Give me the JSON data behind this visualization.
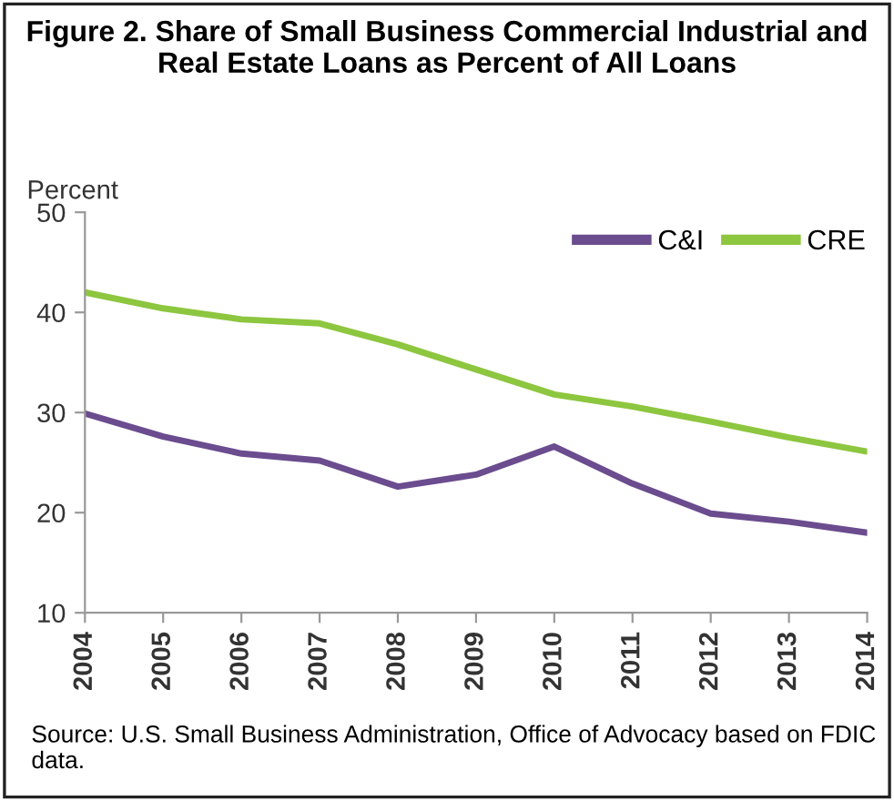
{
  "chart_data": {
    "type": "line",
    "title": "Figure 2. Share of Small Business Commercial Industrial and Real Estate Loans as Percent of All Loans",
    "ylabel": "Percent",
    "categories": [
      "2004",
      "2005",
      "2006",
      "2007",
      "2008",
      "2009",
      "2010",
      "2011",
      "2012",
      "2013",
      "2014"
    ],
    "series": [
      {
        "name": "C&I",
        "color": "#6b4c8f",
        "values": [
          29.9,
          27.6,
          25.9,
          25.2,
          22.6,
          23.8,
          26.6,
          22.9,
          19.9,
          19.1,
          18.0
        ]
      },
      {
        "name": "CRE",
        "color": "#8dc63f",
        "values": [
          42.0,
          40.4,
          39.3,
          38.9,
          36.8,
          34.3,
          31.8,
          30.6,
          29.1,
          27.5,
          26.1
        ]
      }
    ],
    "ylim": [
      10,
      50
    ],
    "yticks": [
      10,
      20,
      30,
      40,
      50
    ],
    "grid": false,
    "legend": "top right",
    "marker": "none",
    "line_style": "solid",
    "annotations": [
      "Source: U.S. Small Business Administration, Office of Advocacy based on FDIC data."
    ]
  }
}
